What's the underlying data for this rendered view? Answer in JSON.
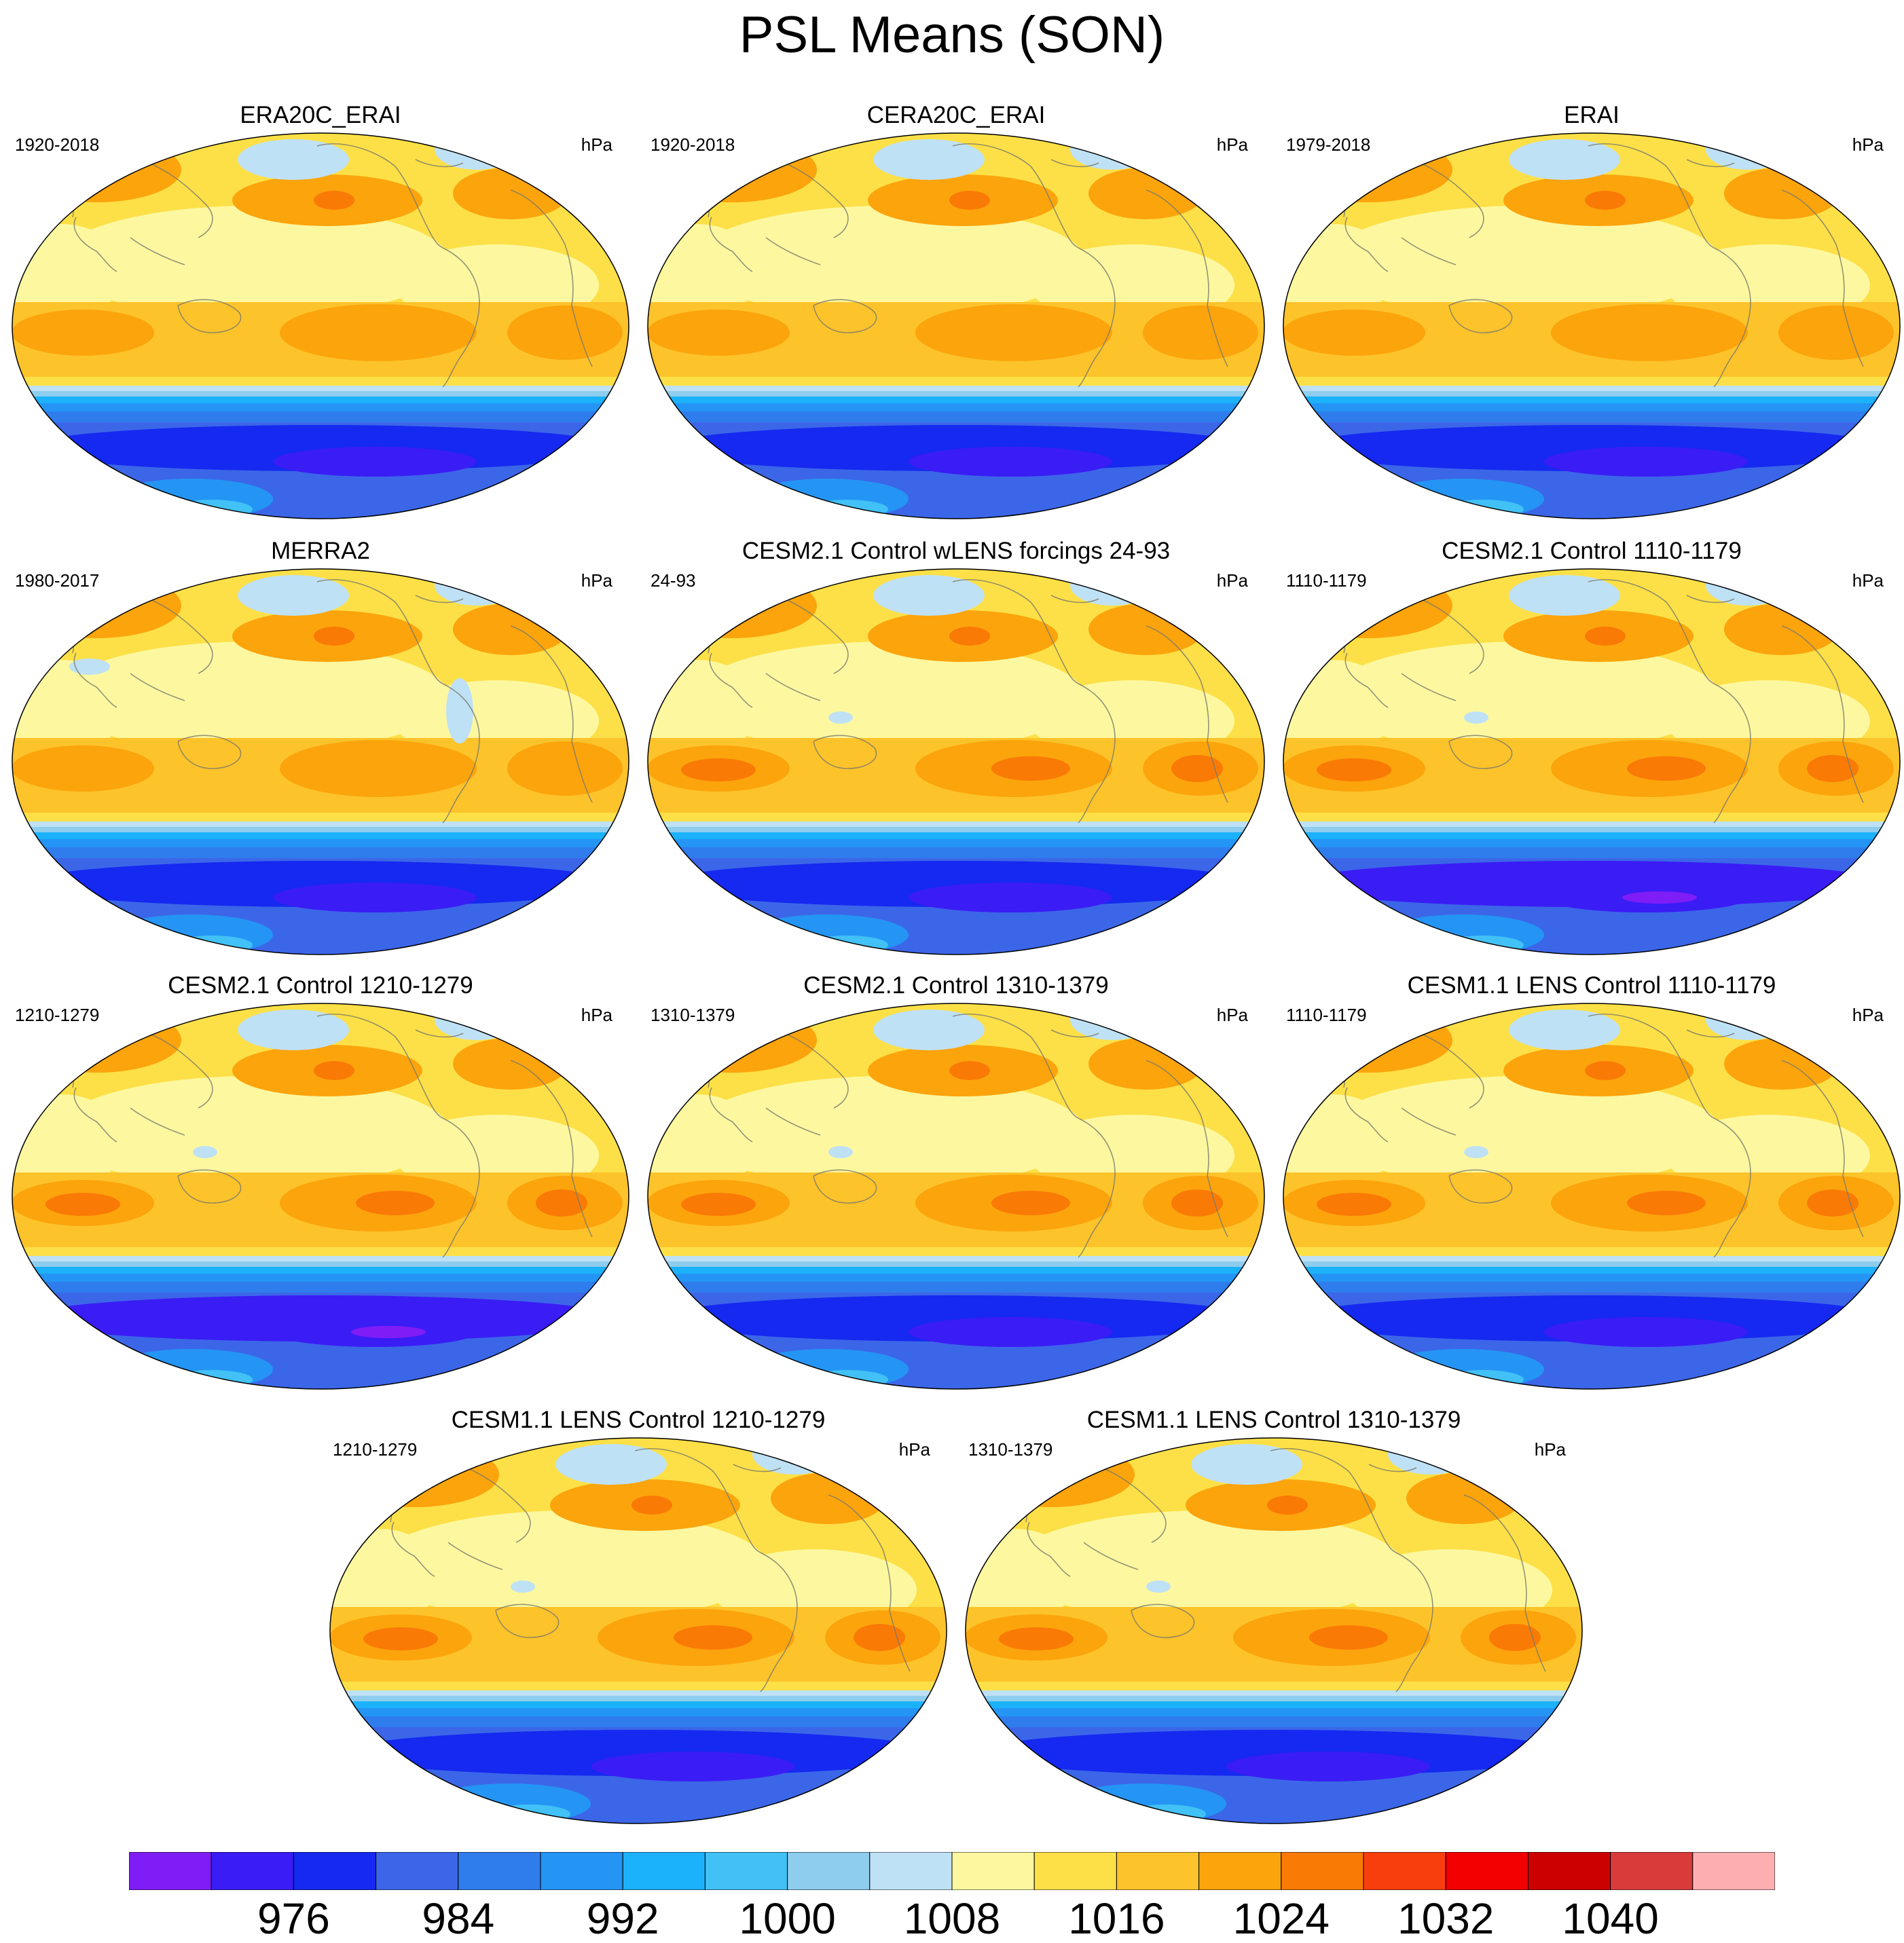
{
  "title": "PSL Means (SON)",
  "panels": [
    {
      "title": "ERA20C_ERAI",
      "period": "1920-2018",
      "units": "hPa",
      "variant": "reanalysis"
    },
    {
      "title": "CERA20C_ERAI",
      "period": "1920-2018",
      "units": "hPa",
      "variant": "reanalysis"
    },
    {
      "title": "ERAI",
      "period": "1979-2018",
      "units": "hPa",
      "variant": "reanalysis"
    },
    {
      "title": "MERRA2",
      "period": "1980-2017",
      "units": "hPa",
      "variant": "merra"
    },
    {
      "title": "CESM2.1 Control wLENS forcings 24-93",
      "period": "24-93",
      "units": "hPa",
      "variant": "model"
    },
    {
      "title": "CESM2.1 Control 1110-1179",
      "period": "1110-1179",
      "units": "hPa",
      "variant": "model-deep"
    },
    {
      "title": "CESM2.1 Control 1210-1279",
      "period": "1210-1279",
      "units": "hPa",
      "variant": "model-deep"
    },
    {
      "title": "CESM2.1 Control 1310-1379",
      "period": "1310-1379",
      "units": "hPa",
      "variant": "model"
    },
    {
      "title": "CESM1.1 LENS Control 1110-1179",
      "period": "1110-1179",
      "units": "hPa",
      "variant": "model"
    },
    {
      "title": "CESM1.1 LENS Control 1210-1279",
      "period": "1210-1279",
      "units": "hPa",
      "variant": "lens"
    },
    {
      "title": "CESM1.1 LENS Control 1310-1379",
      "period": "1310-1379",
      "units": "hPa",
      "variant": "lens"
    }
  ],
  "colorbar": {
    "colors": [
      "#7f1df7",
      "#3a1cf5",
      "#1529f0",
      "#3c66e8",
      "#2f7ded",
      "#2495f5",
      "#1cb2fb",
      "#41c1f5",
      "#8ecdee",
      "#bfe1f5",
      "#fdf8a0",
      "#fde047",
      "#fdc32b",
      "#fca40c",
      "#fa7a06",
      "#f93e0e",
      "#f20000",
      "#cc0000",
      "#d93b3b",
      "#fdaeb0"
    ],
    "tick_labels": [
      "976",
      "984",
      "992",
      "1000",
      "1008",
      "1016",
      "1024",
      "1032",
      "1040"
    ]
  }
}
